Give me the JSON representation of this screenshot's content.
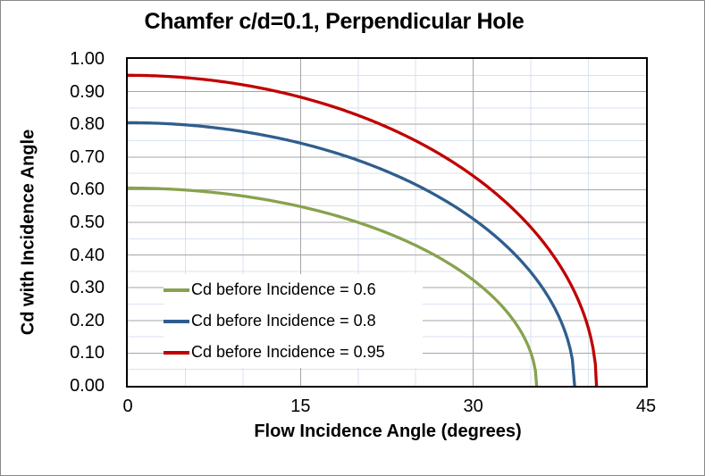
{
  "title": "Chamfer c/d=0.1, Perpendicular Hole",
  "axes": {
    "x": {
      "title": "Flow Incidence Angle (degrees)",
      "min": 0,
      "max": 45,
      "major_step": 15,
      "minor_step": 5,
      "ticks": [
        {
          "label": "0",
          "value": 0
        },
        {
          "label": "15",
          "value": 15
        },
        {
          "label": "30",
          "value": 30
        },
        {
          "label": "45",
          "value": 45
        }
      ]
    },
    "y": {
      "title": "Cd with Incidence Angle",
      "min": 0,
      "max": 1,
      "major_step": 0.1,
      "minor_step": 0.05,
      "ticks": [
        {
          "label": "0.00",
          "value": 0.0
        },
        {
          "label": "0.10",
          "value": 0.1
        },
        {
          "label": "0.20",
          "value": 0.2
        },
        {
          "label": "0.30",
          "value": 0.3
        },
        {
          "label": "0.40",
          "value": 0.4
        },
        {
          "label": "0.50",
          "value": 0.5
        },
        {
          "label": "0.60",
          "value": 0.6
        },
        {
          "label": "0.70",
          "value": 0.7
        },
        {
          "label": "0.80",
          "value": 0.8
        },
        {
          "label": "0.90",
          "value": 0.9
        },
        {
          "label": "1.00",
          "value": 1.0
        }
      ]
    }
  },
  "legend": {
    "position": "inside-left-lower",
    "items": [
      {
        "label": "Cd before Incidence = 0.6",
        "color": "#87A24E"
      },
      {
        "label": "Cd before Incidence = 0.8",
        "color": "#2F5E8E"
      },
      {
        "label": "Cd before Incidence = 0.95",
        "color": "#C00000"
      }
    ]
  },
  "colors": {
    "axis_frame": "#000000",
    "major_gridline": "#A6A6A6",
    "minor_gridline": "#D9E2F1",
    "figure_border": "#898989",
    "text": "#000000",
    "background": "#FFFFFF"
  },
  "chart_data": {
    "type": "line",
    "title": "Chamfer c/d=0.1, Perpendicular Hole",
    "xlabel": "Flow Incidence Angle (degrees)",
    "ylabel": "Cd with Incidence Angle",
    "xlim": [
      0,
      45
    ],
    "ylim": [
      0,
      1
    ],
    "grid": {
      "major_x": 15,
      "minor_x": 5,
      "major_y": 0.1,
      "minor_y": 0.05,
      "legend_position": "inside plot, left-lower"
    },
    "model": "Cd(theta) = cd0 * sqrt(1 - (theta/theta_zero)^2)",
    "series": [
      {
        "name": "Cd before Incidence = 0.6",
        "color": "#87A24E",
        "cd0": 0.605,
        "theta_zero": 35.5,
        "points": [
          [
            0,
            0.605
          ],
          [
            2.5,
            0.604
          ],
          [
            5,
            0.599
          ],
          [
            7.5,
            0.591
          ],
          [
            10,
            0.581
          ],
          [
            12.5,
            0.566
          ],
          [
            15,
            0.548
          ],
          [
            17.5,
            0.526
          ],
          [
            20,
            0.5
          ],
          [
            22.5,
            0.468
          ],
          [
            25,
            0.43
          ],
          [
            27.5,
            0.383
          ],
          [
            30,
            0.323
          ],
          [
            32,
            0.262
          ],
          [
            33.5,
            0.2
          ],
          [
            34.5,
            0.143
          ],
          [
            35,
            0.101
          ],
          [
            35.5,
            0
          ]
        ]
      },
      {
        "name": "Cd before Incidence = 0.8",
        "color": "#2F5E8E",
        "cd0": 0.805,
        "theta_zero": 38.8,
        "points": [
          [
            0,
            0.805
          ],
          [
            2.5,
            0.803
          ],
          [
            5,
            0.798
          ],
          [
            7.5,
            0.79
          ],
          [
            10,
            0.778
          ],
          [
            12.5,
            0.762
          ],
          [
            15,
            0.742
          ],
          [
            17.5,
            0.719
          ],
          [
            20,
            0.69
          ],
          [
            22.5,
            0.656
          ],
          [
            25,
            0.616
          ],
          [
            27.5,
            0.568
          ],
          [
            30,
            0.511
          ],
          [
            32.5,
            0.44
          ],
          [
            35,
            0.347
          ],
          [
            36.5,
            0.273
          ],
          [
            37.5,
            0.207
          ],
          [
            38.3,
            0.129
          ],
          [
            38.8,
            0
          ]
        ]
      },
      {
        "name": "Cd before Incidence = 0.95",
        "color": "#C00000",
        "cd0": 0.95,
        "theta_zero": 40.7,
        "points": [
          [
            0,
            0.95
          ],
          [
            2.5,
            0.948
          ],
          [
            5,
            0.943
          ],
          [
            7.5,
            0.934
          ],
          [
            10,
            0.921
          ],
          [
            12.5,
            0.904
          ],
          [
            15,
            0.883
          ],
          [
            17.5,
            0.858
          ],
          [
            20,
            0.827
          ],
          [
            22.5,
            0.792
          ],
          [
            25,
            0.75
          ],
          [
            27.5,
            0.7
          ],
          [
            30,
            0.642
          ],
          [
            32.5,
            0.572
          ],
          [
            35,
            0.485
          ],
          [
            37,
            0.396
          ],
          [
            38.5,
            0.308
          ],
          [
            39.5,
            0.229
          ],
          [
            40.2,
            0.149
          ],
          [
            40.7,
            0
          ]
        ]
      }
    ]
  }
}
